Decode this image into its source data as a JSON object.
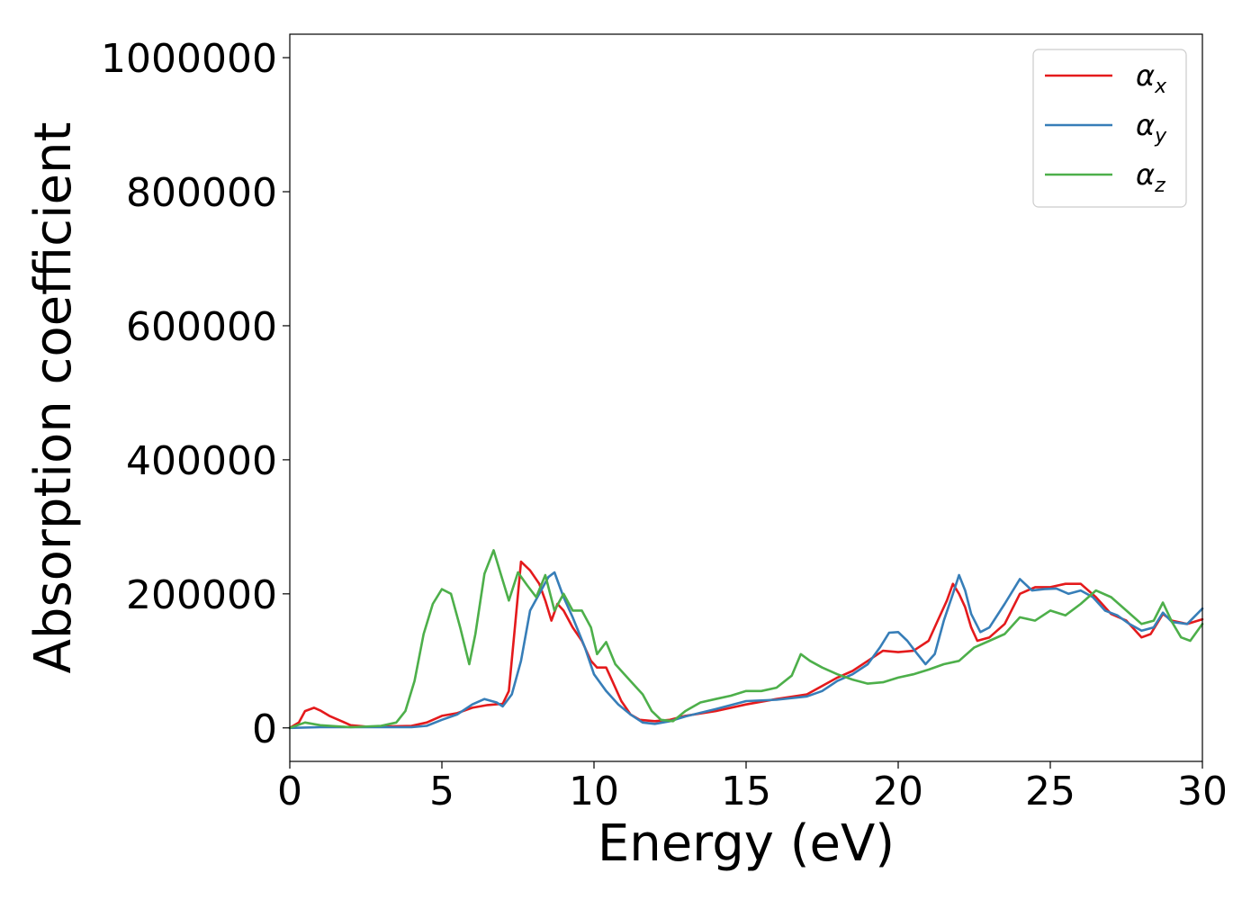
{
  "chart_data": {
    "type": "line",
    "xlabel": "Energy (eV)",
    "ylabel": "Absorption coefficient",
    "xlim": [
      0,
      30
    ],
    "ylim": [
      -50000,
      1035000
    ],
    "xticks": [
      "0",
      "5",
      "10",
      "15",
      "20",
      "25",
      "30"
    ],
    "yticks": [
      "0",
      "200000",
      "400000",
      "600000",
      "800000",
      "1000000"
    ],
    "grid": false,
    "legend_position": "top-right",
    "series": [
      {
        "name": "αx",
        "legend_base": "α",
        "legend_sub": "x",
        "color": "#e41a1c",
        "points": [
          [
            0,
            0
          ],
          [
            0.3,
            8000
          ],
          [
            0.5,
            25000
          ],
          [
            0.8,
            30000
          ],
          [
            1.0,
            26000
          ],
          [
            1.3,
            18000
          ],
          [
            1.7,
            10000
          ],
          [
            2.0,
            4000
          ],
          [
            2.5,
            2000
          ],
          [
            3.0,
            2000
          ],
          [
            4.0,
            3000
          ],
          [
            4.5,
            8000
          ],
          [
            5.0,
            18000
          ],
          [
            5.5,
            22000
          ],
          [
            6.0,
            30000
          ],
          [
            6.5,
            34000
          ],
          [
            7.0,
            36000
          ],
          [
            7.2,
            55000
          ],
          [
            7.4,
            150000
          ],
          [
            7.6,
            248000
          ],
          [
            7.9,
            235000
          ],
          [
            8.2,
            215000
          ],
          [
            8.4,
            190000
          ],
          [
            8.6,
            160000
          ],
          [
            8.8,
            185000
          ],
          [
            9.0,
            175000
          ],
          [
            9.3,
            150000
          ],
          [
            9.6,
            130000
          ],
          [
            9.9,
            100000
          ],
          [
            10.1,
            90000
          ],
          [
            10.4,
            90000
          ],
          [
            10.6,
            70000
          ],
          [
            10.9,
            40000
          ],
          [
            11.2,
            20000
          ],
          [
            11.5,
            12000
          ],
          [
            12.0,
            10000
          ],
          [
            12.5,
            12000
          ],
          [
            13.0,
            18000
          ],
          [
            14.0,
            25000
          ],
          [
            15.0,
            35000
          ],
          [
            16.0,
            43000
          ],
          [
            17.0,
            50000
          ],
          [
            18.0,
            75000
          ],
          [
            18.5,
            85000
          ],
          [
            19.0,
            100000
          ],
          [
            19.5,
            115000
          ],
          [
            20.0,
            113000
          ],
          [
            20.5,
            115000
          ],
          [
            21.0,
            130000
          ],
          [
            21.3,
            160000
          ],
          [
            21.6,
            190000
          ],
          [
            21.8,
            215000
          ],
          [
            22.0,
            200000
          ],
          [
            22.2,
            180000
          ],
          [
            22.4,
            150000
          ],
          [
            22.6,
            130000
          ],
          [
            23.0,
            135000
          ],
          [
            23.5,
            155000
          ],
          [
            24.0,
            200000
          ],
          [
            24.5,
            210000
          ],
          [
            25.0,
            210000
          ],
          [
            25.5,
            215000
          ],
          [
            26.0,
            215000
          ],
          [
            26.5,
            195000
          ],
          [
            27.0,
            170000
          ],
          [
            27.5,
            160000
          ],
          [
            28.0,
            135000
          ],
          [
            28.3,
            140000
          ],
          [
            28.7,
            170000
          ],
          [
            29.0,
            160000
          ],
          [
            29.5,
            155000
          ],
          [
            30.0,
            162000
          ]
        ]
      },
      {
        "name": "αy",
        "legend_base": "α",
        "legend_sub": "y",
        "color": "#377eb8",
        "points": [
          [
            0,
            0
          ],
          [
            1.0,
            1000
          ],
          [
            2.0,
            1000
          ],
          [
            3.0,
            1000
          ],
          [
            4.0,
            1000
          ],
          [
            4.5,
            3000
          ],
          [
            5.0,
            12000
          ],
          [
            5.5,
            20000
          ],
          [
            6.0,
            35000
          ],
          [
            6.4,
            43000
          ],
          [
            6.8,
            38000
          ],
          [
            7.0,
            32000
          ],
          [
            7.3,
            50000
          ],
          [
            7.6,
            100000
          ],
          [
            7.9,
            175000
          ],
          [
            8.2,
            200000
          ],
          [
            8.5,
            225000
          ],
          [
            8.7,
            232000
          ],
          [
            9.0,
            195000
          ],
          [
            9.3,
            165000
          ],
          [
            9.7,
            120000
          ],
          [
            10.0,
            80000
          ],
          [
            10.4,
            55000
          ],
          [
            10.8,
            35000
          ],
          [
            11.2,
            20000
          ],
          [
            11.6,
            8000
          ],
          [
            12.0,
            6000
          ],
          [
            12.5,
            10000
          ],
          [
            13.0,
            17000
          ],
          [
            14.0,
            28000
          ],
          [
            15.0,
            40000
          ],
          [
            16.0,
            42000
          ],
          [
            17.0,
            47000
          ],
          [
            17.5,
            55000
          ],
          [
            18.0,
            70000
          ],
          [
            18.5,
            80000
          ],
          [
            19.0,
            95000
          ],
          [
            19.4,
            120000
          ],
          [
            19.7,
            142000
          ],
          [
            20.0,
            143000
          ],
          [
            20.3,
            130000
          ],
          [
            20.6,
            112000
          ],
          [
            20.9,
            95000
          ],
          [
            21.2,
            110000
          ],
          [
            21.5,
            160000
          ],
          [
            21.8,
            200000
          ],
          [
            22.0,
            228000
          ],
          [
            22.2,
            205000
          ],
          [
            22.4,
            170000
          ],
          [
            22.7,
            143000
          ],
          [
            23.0,
            150000
          ],
          [
            23.5,
            185000
          ],
          [
            24.0,
            222000
          ],
          [
            24.4,
            205000
          ],
          [
            24.8,
            207000
          ],
          [
            25.2,
            208000
          ],
          [
            25.6,
            200000
          ],
          [
            26.0,
            205000
          ],
          [
            26.4,
            195000
          ],
          [
            26.8,
            175000
          ],
          [
            27.2,
            168000
          ],
          [
            27.6,
            155000
          ],
          [
            28.0,
            145000
          ],
          [
            28.4,
            150000
          ],
          [
            28.7,
            172000
          ],
          [
            29.0,
            158000
          ],
          [
            29.5,
            155000
          ],
          [
            30.0,
            178000
          ]
        ]
      },
      {
        "name": "αz",
        "legend_base": "α",
        "legend_sub": "z",
        "color": "#4daf4a",
        "points": [
          [
            0,
            0
          ],
          [
            0.5,
            8000
          ],
          [
            1.0,
            4000
          ],
          [
            2.0,
            1000
          ],
          [
            3.0,
            3000
          ],
          [
            3.5,
            8000
          ],
          [
            3.8,
            25000
          ],
          [
            4.1,
            70000
          ],
          [
            4.4,
            140000
          ],
          [
            4.7,
            185000
          ],
          [
            5.0,
            207000
          ],
          [
            5.3,
            200000
          ],
          [
            5.6,
            150000
          ],
          [
            5.9,
            95000
          ],
          [
            6.1,
            140000
          ],
          [
            6.4,
            230000
          ],
          [
            6.7,
            265000
          ],
          [
            6.9,
            235000
          ],
          [
            7.2,
            190000
          ],
          [
            7.5,
            232000
          ],
          [
            7.8,
            213000
          ],
          [
            8.1,
            195000
          ],
          [
            8.4,
            228000
          ],
          [
            8.7,
            175000
          ],
          [
            9.0,
            200000
          ],
          [
            9.3,
            175000
          ],
          [
            9.6,
            175000
          ],
          [
            9.9,
            150000
          ],
          [
            10.1,
            110000
          ],
          [
            10.4,
            128000
          ],
          [
            10.7,
            95000
          ],
          [
            11.0,
            80000
          ],
          [
            11.3,
            65000
          ],
          [
            11.6,
            50000
          ],
          [
            11.9,
            25000
          ],
          [
            12.2,
            12000
          ],
          [
            12.6,
            10000
          ],
          [
            13.0,
            25000
          ],
          [
            13.5,
            38000
          ],
          [
            14.0,
            43000
          ],
          [
            14.5,
            48000
          ],
          [
            15.0,
            55000
          ],
          [
            15.5,
            55000
          ],
          [
            16.0,
            60000
          ],
          [
            16.5,
            78000
          ],
          [
            16.8,
            110000
          ],
          [
            17.1,
            100000
          ],
          [
            17.5,
            90000
          ],
          [
            18.0,
            80000
          ],
          [
            18.5,
            72000
          ],
          [
            19.0,
            66000
          ],
          [
            19.5,
            68000
          ],
          [
            20.0,
            75000
          ],
          [
            20.5,
            80000
          ],
          [
            21.0,
            87000
          ],
          [
            21.5,
            95000
          ],
          [
            22.0,
            100000
          ],
          [
            22.5,
            120000
          ],
          [
            23.0,
            130000
          ],
          [
            23.5,
            140000
          ],
          [
            24.0,
            165000
          ],
          [
            24.5,
            160000
          ],
          [
            25.0,
            175000
          ],
          [
            25.5,
            168000
          ],
          [
            26.0,
            185000
          ],
          [
            26.5,
            205000
          ],
          [
            27.0,
            195000
          ],
          [
            27.5,
            175000
          ],
          [
            28.0,
            155000
          ],
          [
            28.4,
            160000
          ],
          [
            28.7,
            187000
          ],
          [
            29.0,
            158000
          ],
          [
            29.3,
            135000
          ],
          [
            29.6,
            130000
          ],
          [
            30.0,
            155000
          ]
        ]
      }
    ]
  }
}
